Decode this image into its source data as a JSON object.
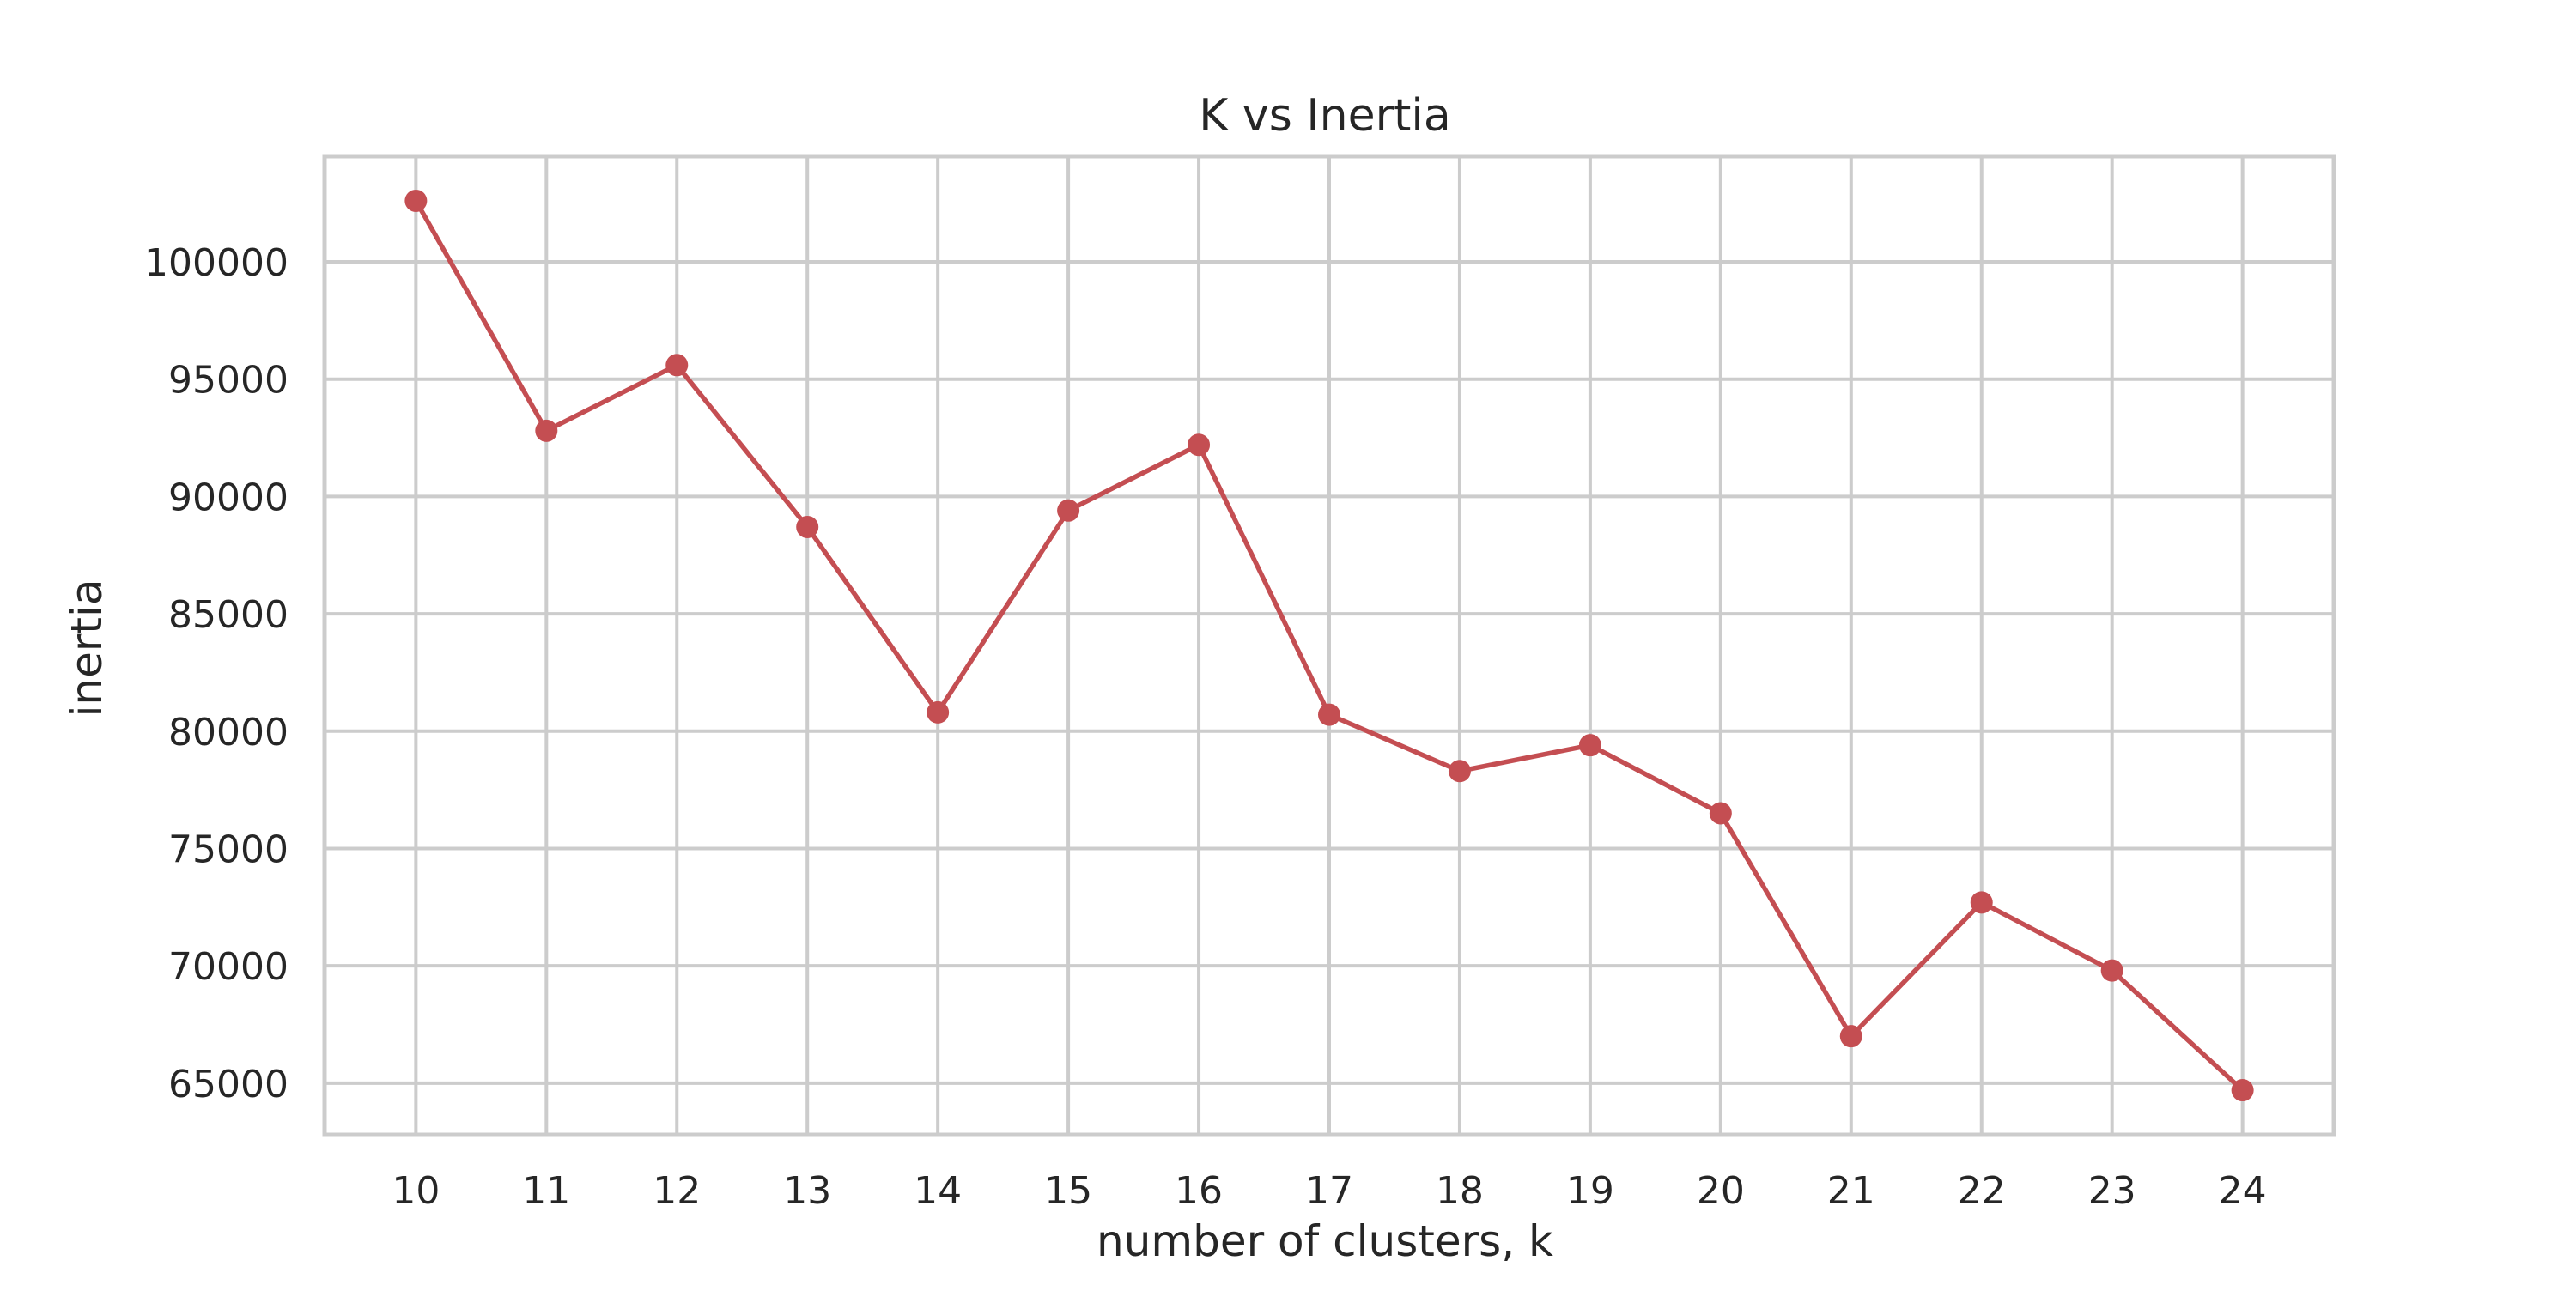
{
  "colors": {
    "series": "#c44e52",
    "grid": "#cccccc",
    "text": "#262626",
    "background": "#ffffff"
  },
  "chart_data": {
    "type": "line",
    "title": "K vs Inertia",
    "xlabel": "number of clusters, k",
    "ylabel": "inertia",
    "x": [
      10,
      11,
      12,
      13,
      14,
      15,
      16,
      17,
      18,
      19,
      20,
      21,
      22,
      23,
      24
    ],
    "series": [
      {
        "values": [
          102600,
          92800,
          95600,
          88700,
          80800,
          89400,
          92200,
          80700,
          78300,
          79400,
          76500,
          67000,
          72700,
          69800,
          64700
        ],
        "marker": "circle"
      }
    ],
    "xticks": [
      "10",
      "11",
      "12",
      "13",
      "14",
      "15",
      "16",
      "17",
      "18",
      "19",
      "20",
      "21",
      "22",
      "23",
      "24"
    ],
    "yticks": [
      "65000",
      "70000",
      "75000",
      "80000",
      "85000",
      "90000",
      "95000",
      "100000"
    ],
    "xlim": [
      9.3,
      24.7
    ],
    "ylim": [
      62800,
      104500
    ],
    "grid": true
  }
}
